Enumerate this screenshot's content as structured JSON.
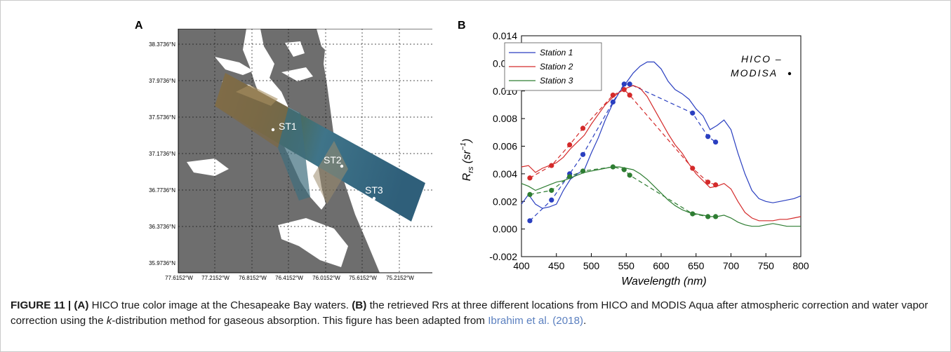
{
  "panel_a": {
    "letter": "A",
    "lat_labels": [
      "38.3736°N",
      "37.9736°N",
      "37.5736°N",
      "37.1736°N",
      "36.7736°N",
      "36.3736°N",
      "35.9736°N"
    ],
    "lon_labels": [
      "77.6152°W",
      "77.2152°W",
      "76.8152°W",
      "76.4152°W",
      "76.0152°W",
      "75.6152°W",
      "75.2152°W"
    ],
    "stations": [
      "ST1",
      "ST2",
      "ST3"
    ],
    "colors": {
      "land": "#6e6e6e",
      "water": "#ffffff",
      "scene_water": "#3f7489",
      "scene_land": "#7d6a46"
    }
  },
  "panel_b": {
    "letter": "B",
    "legend_stations": [
      "Station 1",
      "Station 2",
      "Station 3"
    ],
    "legend_right_hico": "HICO –",
    "legend_right_modisa": "MODISA",
    "ylabel_main": "R",
    "ylabel_sub": "rs",
    "ylabel_unit_open": "(sr",
    "ylabel_unit_exp": "−1",
    "ylabel_unit_close": ")",
    "xlabel_main": "Wavelength",
    "xlabel_unit": "(nm)"
  },
  "chart_data": {
    "type": "line",
    "xlabel": "Wavelength (nm)",
    "ylabel": "Rrs (sr−1)",
    "xlim": [
      400,
      800
    ],
    "ylim": [
      -0.002,
      0.014
    ],
    "x_ticks": [
      400,
      450,
      500,
      550,
      600,
      650,
      700,
      750,
      800
    ],
    "y_ticks": [
      -0.002,
      0.0,
      0.002,
      0.004,
      0.006,
      0.008,
      0.01,
      0.012,
      0.014
    ],
    "x_tick_labels": [
      "400",
      "450",
      "500",
      "550",
      "600",
      "650",
      "700",
      "750",
      "800"
    ],
    "y_tick_labels": [
      "-0.002",
      "0.000",
      "0.002",
      "0.004",
      "0.006",
      "0.008",
      "0.010",
      "0.012",
      "0.014"
    ],
    "legend_position": "top-left",
    "grid": false,
    "series": [
      {
        "name": "Station 1",
        "color": "#2a3fc0",
        "hico_x": [
          400,
          410,
          420,
          430,
          440,
          450,
          460,
          470,
          480,
          490,
          500,
          510,
          520,
          530,
          540,
          550,
          560,
          570,
          580,
          590,
          600,
          610,
          620,
          630,
          640,
          650,
          660,
          670,
          680,
          690,
          700,
          710,
          720,
          730,
          740,
          750,
          760,
          770,
          780,
          790,
          800
        ],
        "hico_y": [
          0.0018,
          0.0025,
          0.0018,
          0.0015,
          0.0016,
          0.0018,
          0.0028,
          0.0036,
          0.004,
          0.0043,
          0.0055,
          0.0066,
          0.0079,
          0.009,
          0.0099,
          0.0106,
          0.0113,
          0.0118,
          0.0121,
          0.0121,
          0.0116,
          0.0107,
          0.0101,
          0.0098,
          0.0094,
          0.0087,
          0.0082,
          0.0072,
          0.0075,
          0.0079,
          0.0072,
          0.0055,
          0.004,
          0.0028,
          0.0022,
          0.002,
          0.0019,
          0.002,
          0.0021,
          0.0022,
          0.0024
        ],
        "modisa_x": [
          412,
          443,
          469,
          488,
          531,
          547,
          555,
          645,
          667,
          678
        ],
        "modisa_y": [
          0.0006,
          0.0021,
          0.004,
          0.0054,
          0.0092,
          0.0105,
          0.0105,
          0.0084,
          0.0067,
          0.0063
        ]
      },
      {
        "name": "Station 2",
        "color": "#d42a2a",
        "hico_x": [
          400,
          410,
          420,
          430,
          440,
          450,
          460,
          470,
          480,
          490,
          500,
          510,
          520,
          530,
          540,
          550,
          560,
          570,
          580,
          590,
          600,
          610,
          620,
          630,
          640,
          650,
          660,
          670,
          680,
          690,
          700,
          710,
          720,
          730,
          740,
          750,
          760,
          770,
          780,
          790,
          800
        ],
        "hico_y": [
          0.0045,
          0.0046,
          0.0041,
          0.0044,
          0.0046,
          0.0048,
          0.0052,
          0.0058,
          0.0063,
          0.0068,
          0.0076,
          0.0083,
          0.009,
          0.0095,
          0.0099,
          0.0102,
          0.0104,
          0.0102,
          0.0096,
          0.0087,
          0.0078,
          0.0069,
          0.0061,
          0.0055,
          0.0047,
          0.004,
          0.0035,
          0.003,
          0.0031,
          0.0033,
          0.0029,
          0.002,
          0.0012,
          0.0008,
          0.0006,
          0.0006,
          0.0006,
          0.0007,
          0.0007,
          0.0008,
          0.0009
        ],
        "modisa_x": [
          412,
          443,
          469,
          488,
          531,
          547,
          555,
          645,
          667,
          678
        ],
        "modisa_y": [
          0.0037,
          0.0046,
          0.0061,
          0.0073,
          0.0097,
          0.0101,
          0.0097,
          0.0044,
          0.0034,
          0.0032
        ]
      },
      {
        "name": "Station 3",
        "color": "#2e7d32",
        "hico_x": [
          400,
          410,
          420,
          430,
          440,
          450,
          460,
          470,
          480,
          490,
          500,
          510,
          520,
          530,
          540,
          550,
          560,
          570,
          580,
          590,
          600,
          610,
          620,
          630,
          640,
          650,
          660,
          670,
          680,
          690,
          700,
          710,
          720,
          730,
          740,
          750,
          760,
          770,
          780,
          790,
          800
        ],
        "hico_y": [
          0.0033,
          0.0031,
          0.0028,
          0.003,
          0.0032,
          0.0034,
          0.0035,
          0.0037,
          0.0039,
          0.0041,
          0.0042,
          0.0043,
          0.0044,
          0.0045,
          0.0045,
          0.0044,
          0.0043,
          0.004,
          0.0036,
          0.0031,
          0.0026,
          0.0021,
          0.0017,
          0.0014,
          0.0012,
          0.0011,
          0.001,
          0.0009,
          0.0009,
          0.001,
          0.0008,
          0.0005,
          0.0003,
          0.0002,
          0.0002,
          0.0003,
          0.0004,
          0.0003,
          0.0002,
          0.0002,
          0.0002
        ],
        "modisa_x": [
          412,
          443,
          469,
          488,
          531,
          547,
          555,
          645,
          667,
          678
        ],
        "modisa_y": [
          0.0025,
          0.0028,
          0.0038,
          0.0042,
          0.0045,
          0.0043,
          0.0039,
          0.0011,
          0.0009,
          0.0009
        ]
      }
    ]
  },
  "caption": {
    "figure_label": "FIGURE 11 | ",
    "a_label": "(A)",
    "a_text": " HICO true color image at the Chesapeake Bay waters. ",
    "b_label": "(B)",
    "b_text_1": " the retrieved Rrs at three different locations from HICO and MODIS Aqua after atmospheric correction and water vapor correction using the ",
    "k": "k",
    "b_text_2": "-distribution method for gaseous absorption. This figure has been adapted from ",
    "reference": "Ibrahim et al. (2018)",
    "end": "."
  }
}
